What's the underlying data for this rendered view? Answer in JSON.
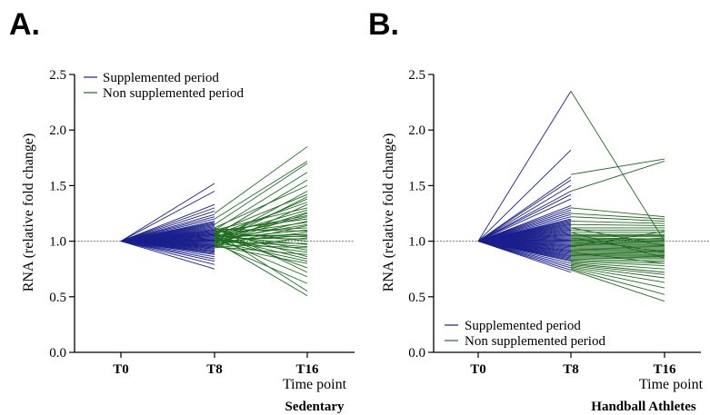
{
  "colors": {
    "supplemented": "#1a1f8c",
    "non_supplemented": "#1f6b1f",
    "reference": "#555555"
  },
  "chart_data": [
    {
      "panel": "A.",
      "type": "line",
      "group_label": "Sedentary",
      "xlabel": "Time point",
      "ylabel": "RNA (relative fold change)",
      "categories": [
        "T0",
        "T8",
        "T16"
      ],
      "ylim": [
        0,
        2.5
      ],
      "yticks": [
        "0.0",
        "0.5",
        "1.0",
        "1.5",
        "2.0",
        "2.5"
      ],
      "reference_line": 1.0,
      "legend_position": "top-left",
      "legend": [
        "Supplemented period",
        "Non supplemented period"
      ],
      "supplemented_T8": [
        1.52,
        1.45,
        1.33,
        1.3,
        1.27,
        1.24,
        1.22,
        1.2,
        1.18,
        1.17,
        1.16,
        1.15,
        1.14,
        1.13,
        1.12,
        1.11,
        1.1,
        1.1,
        1.09,
        1.09,
        1.08,
        1.08,
        1.07,
        1.07,
        1.06,
        1.06,
        1.05,
        1.05,
        1.04,
        1.04,
        1.03,
        1.03,
        1.02,
        1.02,
        1.01,
        1.01,
        1.0,
        1.0,
        0.99,
        0.99,
        0.98,
        0.98,
        0.97,
        0.97,
        0.96,
        0.96,
        0.95,
        0.95,
        0.94,
        0.94,
        0.93,
        0.93,
        0.92,
        0.91,
        0.9,
        0.89,
        0.88,
        0.86,
        0.84,
        0.82,
        0.79,
        0.75
      ],
      "non_supplemented_pairs": [
        [
          1.25,
          1.85
        ],
        [
          1.2,
          1.72
        ],
        [
          1.15,
          1.7
        ],
        [
          1.1,
          1.62
        ],
        [
          1.05,
          1.55
        ],
        [
          1.12,
          1.5
        ],
        [
          1.0,
          1.45
        ],
        [
          1.08,
          1.42
        ],
        [
          0.98,
          1.4
        ],
        [
          1.02,
          1.38
        ],
        [
          1.06,
          1.35
        ],
        [
          0.95,
          1.33
        ],
        [
          1.1,
          1.3
        ],
        [
          1.04,
          1.28
        ],
        [
          1.0,
          1.26
        ],
        [
          0.97,
          1.25
        ],
        [
          1.07,
          1.23
        ],
        [
          1.03,
          1.22
        ],
        [
          1.09,
          1.2
        ],
        [
          0.99,
          1.18
        ],
        [
          1.05,
          1.17
        ],
        [
          1.01,
          1.15
        ],
        [
          0.96,
          1.14
        ],
        [
          1.08,
          1.12
        ],
        [
          1.02,
          1.1
        ],
        [
          1.11,
          1.09
        ],
        [
          0.98,
          1.08
        ],
        [
          1.04,
          1.06
        ],
        [
          1.0,
          1.05
        ],
        [
          1.06,
          1.04
        ],
        [
          0.94,
          1.03
        ],
        [
          1.03,
          1.02
        ],
        [
          1.09,
          1.0
        ],
        [
          0.99,
          0.98
        ],
        [
          1.05,
          0.97
        ],
        [
          1.01,
          0.95
        ],
        [
          0.97,
          0.94
        ],
        [
          1.07,
          0.92
        ],
        [
          1.02,
          0.9
        ],
        [
          0.95,
          0.88
        ],
        [
          1.1,
          0.86
        ],
        [
          1.04,
          0.84
        ],
        [
          1.0,
          0.82
        ],
        [
          0.96,
          0.8
        ],
        [
          1.06,
          0.76
        ],
        [
          1.12,
          0.72
        ],
        [
          1.03,
          0.68
        ],
        [
          0.98,
          0.62
        ],
        [
          1.08,
          0.55
        ],
        [
          1.0,
          0.51
        ]
      ]
    },
    {
      "panel": "B.",
      "type": "line",
      "group_label": "Handball Athletes",
      "xlabel": "Time point",
      "ylabel": "RNA (relative fold change)",
      "categories": [
        "T0",
        "T8",
        "T16"
      ],
      "ylim": [
        0,
        2.5
      ],
      "yticks": [
        "0.0",
        "0.5",
        "1.0",
        "1.5",
        "2.0",
        "2.5"
      ],
      "reference_line": 1.0,
      "legend_position": "bottom-left",
      "legend": [
        "Supplemented period",
        "Non supplemented period"
      ],
      "supplemented_T8": [
        2.35,
        1.82,
        1.58,
        1.55,
        1.5,
        1.45,
        1.42,
        1.38,
        1.32,
        1.3,
        1.28,
        1.26,
        1.24,
        1.22,
        1.2,
        1.19,
        1.18,
        1.17,
        1.16,
        1.15,
        1.14,
        1.13,
        1.12,
        1.11,
        1.1,
        1.09,
        1.08,
        1.07,
        1.06,
        1.05,
        1.04,
        1.03,
        1.02,
        1.01,
        1.0,
        0.99,
        0.98,
        0.97,
        0.96,
        0.95,
        0.94,
        0.93,
        0.92,
        0.91,
        0.9,
        0.89,
        0.88,
        0.87,
        0.86,
        0.85,
        0.84,
        0.83,
        0.82,
        0.8,
        0.78,
        0.76,
        0.74,
        0.72
      ],
      "non_supplemented_pairs": [
        [
          2.35,
          1.0
        ],
        [
          1.6,
          1.74
        ],
        [
          1.45,
          1.72
        ],
        [
          1.3,
          1.22
        ],
        [
          1.25,
          1.2
        ],
        [
          1.22,
          1.18
        ],
        [
          1.18,
          1.16
        ],
        [
          1.15,
          1.14
        ],
        [
          1.12,
          1.12
        ],
        [
          1.1,
          1.1
        ],
        [
          1.08,
          1.08
        ],
        [
          1.06,
          1.06
        ],
        [
          1.05,
          1.05
        ],
        [
          1.04,
          1.04
        ],
        [
          1.03,
          1.02
        ],
        [
          1.02,
          1.01
        ],
        [
          1.01,
          1.0
        ],
        [
          1.0,
          0.99
        ],
        [
          0.99,
          0.98
        ],
        [
          0.98,
          0.97
        ],
        [
          0.97,
          0.96
        ],
        [
          0.96,
          0.95
        ],
        [
          0.95,
          0.94
        ],
        [
          0.94,
          0.93
        ],
        [
          0.93,
          0.92
        ],
        [
          0.92,
          0.91
        ],
        [
          0.91,
          0.9
        ],
        [
          0.9,
          0.89
        ],
        [
          0.89,
          0.88
        ],
        [
          0.88,
          0.87
        ],
        [
          0.87,
          0.86
        ],
        [
          0.86,
          0.85
        ],
        [
          0.85,
          0.84
        ],
        [
          0.84,
          0.82
        ],
        [
          0.83,
          0.8
        ],
        [
          0.82,
          0.78
        ],
        [
          0.81,
          0.75
        ],
        [
          0.8,
          0.72
        ],
        [
          0.79,
          0.7
        ],
        [
          0.78,
          0.67
        ],
        [
          0.77,
          0.63
        ],
        [
          0.76,
          0.58
        ],
        [
          0.75,
          0.52
        ],
        [
          0.74,
          0.46
        ],
        [
          1.08,
          0.85
        ],
        [
          1.03,
          0.9
        ],
        [
          0.98,
          1.03
        ],
        [
          0.95,
          1.09
        ],
        [
          1.12,
          0.96
        ],
        [
          0.9,
          0.8
        ]
      ]
    }
  ]
}
